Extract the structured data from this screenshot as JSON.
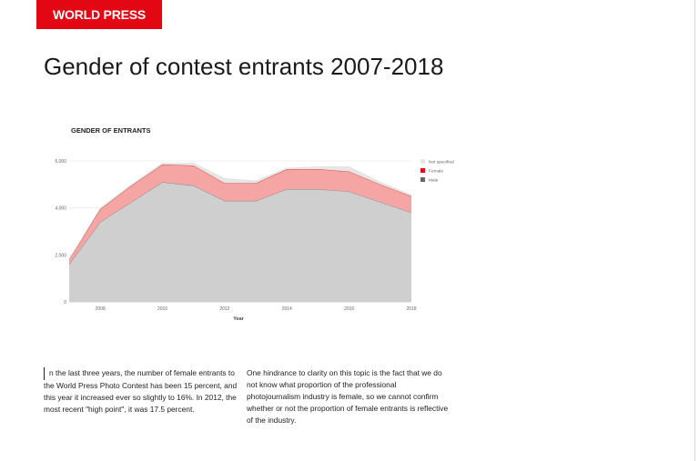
{
  "header": {
    "logo_text": "WORLD PRESS PHOTO"
  },
  "page_title": "Gender of contest entrants 2007-2018",
  "body": {
    "col1": "n the last three years, the number of female entrants to the World Press Photo Contest has been 15 percent, and this year it increased ever so slightly to 16%. In 2012, the most recent \"high point\", it was 17.5 percent.",
    "col2": "One hindrance to clarity on this topic is the fact that we do not know what proportion of the professional photojournalism industry is female, so we cannot confirm whether or not the proportion of female entrants is reflective of the industry."
  },
  "colors": {
    "brand_red": "#e30613",
    "male": "#cfcfcf",
    "female": "#f6a5a5",
    "not_specified": "#e6e6e6",
    "male_line": "#888888",
    "female_line": "#d9453c"
  },
  "chart_data": {
    "type": "area",
    "stacked": true,
    "title": "GENDER OF ENTRANTS",
    "xlabel": "Year",
    "ylabel": "",
    "x": [
      2007,
      2008,
      2009,
      2010,
      2011,
      2012,
      2013,
      2014,
      2015,
      2016,
      2017,
      2018
    ],
    "xticks": [
      "2008",
      "2010",
      "2012",
      "2014",
      "2016",
      "2018"
    ],
    "yticks": [
      "0",
      "2,000",
      "4,000",
      "6,000"
    ],
    "ylim": [
      0,
      6000
    ],
    "grid": true,
    "legend_position": "right",
    "series": [
      {
        "name": "Male",
        "values": [
          1600,
          3400,
          4250,
          5100,
          4950,
          4300,
          4300,
          4800,
          4800,
          4700,
          4250,
          3800
        ]
      },
      {
        "name": "Female",
        "values": [
          200,
          550,
          700,
          750,
          850,
          750,
          750,
          850,
          850,
          850,
          750,
          700
        ]
      },
      {
        "name": "Not specified",
        "values": [
          0,
          50,
          50,
          50,
          100,
          200,
          100,
          50,
          100,
          200,
          100,
          50
        ]
      }
    ]
  }
}
